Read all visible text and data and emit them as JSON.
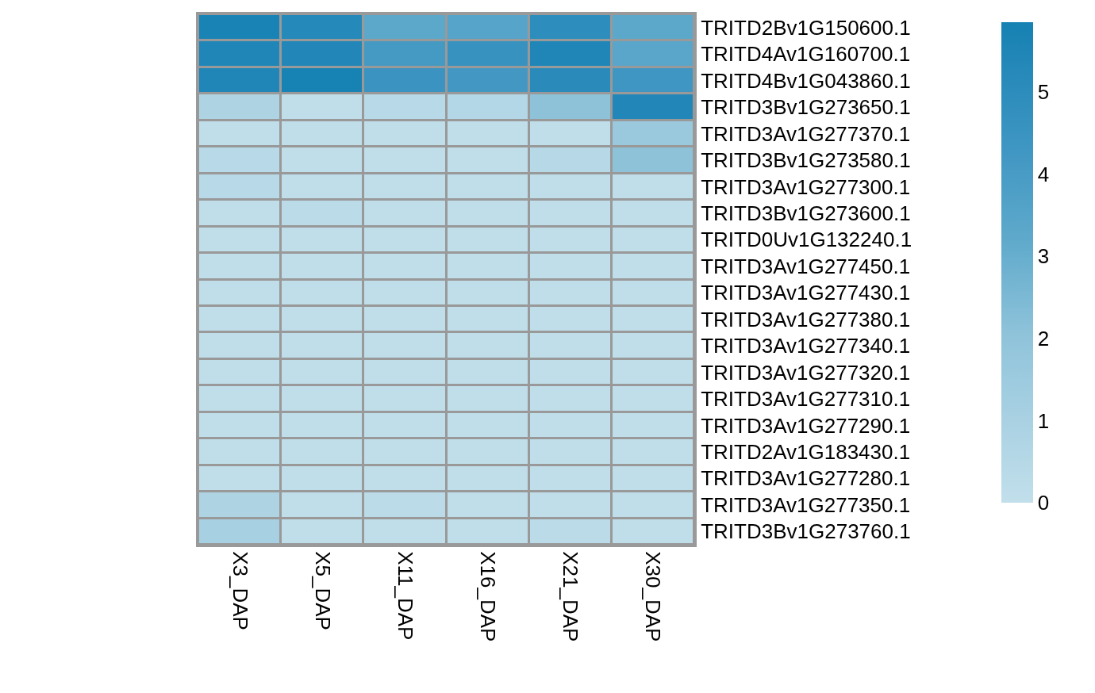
{
  "chart_data": {
    "type": "heatmap",
    "categories": [
      "X3_DAP",
      "X5_DAP",
      "X11_DAP",
      "X16_DAP",
      "X21_DAP",
      "X30_DAP"
    ],
    "y_categories": [
      "TRITD2Bv1G150600.1",
      "TRITD4Av1G160700.1",
      "TRITD4Bv1G043860.1",
      "TRITD3Bv1G273650.1",
      "TRITD3Av1G277370.1",
      "TRITD3Bv1G273580.1",
      "TRITD3Av1G277300.1",
      "TRITD3Bv1G273600.1",
      "TRITD0Uv1G132240.1",
      "TRITD3Av1G277450.1",
      "TRITD3Av1G277430.1",
      "TRITD3Av1G277380.1",
      "TRITD3Av1G277340.1",
      "TRITD3Av1G277320.1",
      "TRITD3Av1G277310.1",
      "TRITD3Av1G277290.1",
      "TRITD2Av1G183430.1",
      "TRITD3Av1G277280.1",
      "TRITD3Av1G277350.1",
      "TRITD3Bv1G273760.1"
    ],
    "cells": [
      [
        5.7,
        5.3,
        3.3,
        3.5,
        5.0,
        3.3
      ],
      [
        5.5,
        5.4,
        4.1,
        4.6,
        5.5,
        3.4
      ],
      [
        5.5,
        5.8,
        4.5,
        4.2,
        5.1,
        4.3
      ],
      [
        0.8,
        0.1,
        0.4,
        0.6,
        2.1,
        5.4
      ],
      [
        0.1,
        0.1,
        0.1,
        0.1,
        0.1,
        1.6
      ],
      [
        0.4,
        0.1,
        0.1,
        0.1,
        0.5,
        2.1
      ],
      [
        0.4,
        0.1,
        0.1,
        0.1,
        0.1,
        0.1
      ],
      [
        0.1,
        0.3,
        0.1,
        0.1,
        0.1,
        0.1
      ],
      [
        0.1,
        0.1,
        0.1,
        0.1,
        0.1,
        0.1
      ],
      [
        0.1,
        0.1,
        0.1,
        0.1,
        0.1,
        0.1
      ],
      [
        0.1,
        0.1,
        0.1,
        0.1,
        0.1,
        0.1
      ],
      [
        0.1,
        0.1,
        0.1,
        0.1,
        0.1,
        0.1
      ],
      [
        0.1,
        0.1,
        0.1,
        0.1,
        0.1,
        0.1
      ],
      [
        0.1,
        0.1,
        0.1,
        0.1,
        0.1,
        0.1
      ],
      [
        0.1,
        0.1,
        0.1,
        0.1,
        0.1,
        0.1
      ],
      [
        0.1,
        0.1,
        0.1,
        0.1,
        0.1,
        0.1
      ],
      [
        0.1,
        0.1,
        0.1,
        0.1,
        0.1,
        0.1
      ],
      [
        0.1,
        0.1,
        0.1,
        0.1,
        0.1,
        0.1
      ],
      [
        0.8,
        0.1,
        0.3,
        0.1,
        0.1,
        0.1
      ],
      [
        1.1,
        0.1,
        0.1,
        0.1,
        0.3,
        0.1
      ]
    ],
    "clim": [
      0,
      5.85
    ],
    "cticks": [
      0,
      1,
      2,
      3,
      4,
      5
    ]
  }
}
